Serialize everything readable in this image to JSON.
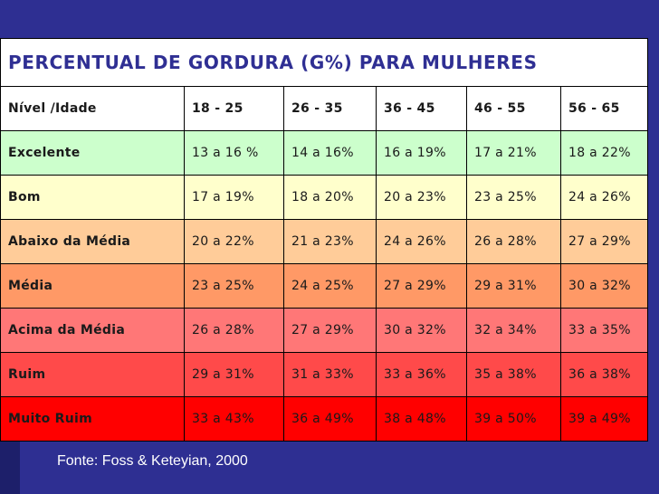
{
  "title": "PERCENTUAL DE GORDURA (G%) PARA MULHERES",
  "header": [
    "Nível /Idade",
    "18 - 25",
    "26 - 35",
    "36 - 45",
    "46 - 55",
    "56 - 65"
  ],
  "rows": [
    {
      "label": "Excelente",
      "values": [
        "13 a 16 %",
        "14 a 16%",
        "16 a 19%",
        "17 a 21%",
        "18 a 22%"
      ],
      "color": "#ccffcc"
    },
    {
      "label": "Bom",
      "values": [
        "17 a 19%",
        "18 a 20%",
        "20 a 23%",
        "23 a 25%",
        "24 a 26%"
      ],
      "color": "#ffffcc"
    },
    {
      "label": "Abaixo da Média",
      "values": [
        "20 a 22%",
        "21 a 23%",
        "24 a 26%",
        "26 a 28%",
        "27 a 29%"
      ],
      "color": "#ffcc99"
    },
    {
      "label": "Média",
      "values": [
        "23 a 25%",
        "24 a 25%",
        "27 a 29%",
        "29 a 31%",
        "30 a 32%"
      ],
      "color": "#ff9966"
    },
    {
      "label": "Acima da Média",
      "values": [
        "26 a 28%",
        "27 a 29%",
        "30 a 32%",
        "32 a 34%",
        "33 a 35%"
      ],
      "color": "#ff7777"
    },
    {
      "label": "Ruim",
      "values": [
        "29 a 31%",
        "31 a 33%",
        "33 a 36%",
        "35 a 38%",
        "36 a 38%"
      ],
      "color": "#ff4a4a"
    },
    {
      "label": "Muito Ruim",
      "values": [
        "33 a 43%",
        "36 a 49%",
        "38 a 48%",
        "39 a 50%",
        "39 a 49%"
      ],
      "color": "#ff0000"
    }
  ],
  "source": "Fonte: Foss & Keteyian, 2000",
  "colors": {
    "background": "#2e2f92",
    "title_text": "#2f2f93",
    "source_text": "#ffffff"
  }
}
